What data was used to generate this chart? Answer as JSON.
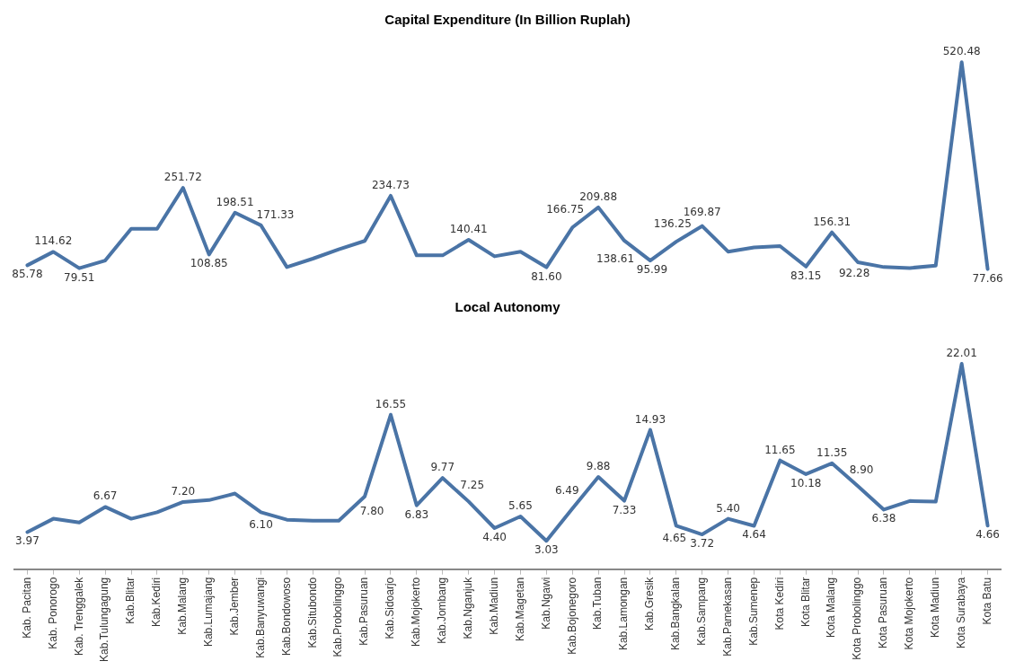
{
  "chart_data": [
    {
      "type": "line",
      "title": "Capital Expenditure (In Billion Ruplah)",
      "categories": [
        null,
        null,
        null,
        null,
        null,
        null,
        null,
        null,
        null,
        null,
        null,
        null,
        null,
        null,
        null,
        null,
        null,
        null,
        null,
        null,
        null,
        null,
        null,
        null,
        null,
        null,
        null,
        null,
        null,
        null,
        null,
        null,
        null,
        null,
        null,
        null,
        null,
        null
      ],
      "series": [
        {
          "color": "#4a74a6",
          "values": [
            85.78,
            114.62,
            79.51,
            96,
            164,
            164,
            251.72,
            108.85,
            198.51,
            171.33,
            82,
            100,
            120,
            138,
            234.73,
            107,
            107,
            140.41,
            105,
            115,
            81.6,
            166.75,
            209.88,
            138.61,
            95.99,
            136.25,
            169.87,
            115,
            124,
            127,
            83.15,
            156.31,
            92.28,
            82,
            80,
            85,
            520.48,
            77.66
          ],
          "value_labels": [
            "85.78",
            "114.62",
            "79.51",
            null,
            null,
            null,
            "251.72",
            "108.85",
            "198.51",
            "171.33",
            null,
            null,
            null,
            null,
            "234.73",
            null,
            null,
            "140.41",
            null,
            null,
            "81.60",
            "166.75",
            "209.88",
            "138.61",
            "95.99",
            "136.25",
            "169.87",
            null,
            null,
            null,
            "83.15",
            "156.31",
            "92.28",
            null,
            null,
            null,
            "520.48",
            "77.66"
          ]
        }
      ],
      "tick_labels": false,
      "grid": false
    },
    {
      "type": "line",
      "title": "Local Autonomy",
      "categories": [
        "Kab. Pacitan",
        "Kab. Ponorogo",
        "Kab. Trenggalek",
        "Kab.Tulungagung",
        "Kab.Blitar",
        "Kab.Kediri",
        "Kab.Malang",
        "Kab.Lumajang",
        "Kab.Jember",
        "Kab.Banyuwangi",
        "Kab.Bondowoso",
        "Kab.Situbondo",
        "Kab.Probolinggo",
        "Kab.Pasuruan",
        "Kab.Sidoarjo",
        "Kab.Mojokerto",
        "Kab.Jombang",
        "Kab.Nganjuk",
        "Kab.Madiun",
        "Kab.Magetan",
        "Kab.Ngawi",
        "Kab.Bojonegoro",
        "Kab.Tuban",
        "Kab.Lamongan",
        "Kab.Gresik",
        "Kab.Bangkalan",
        "Kab.Sampang",
        "Kab.Pamekasan",
        "Kab.Sumenep",
        "Kota Kediri",
        "Kota Blitar",
        "Kota Malang",
        "Kota Probolinggo",
        "Kota Pasuruan",
        "Kota Mojokerto",
        "Kota Madiun",
        "Kota Surabaya",
        "Kota Batu"
      ],
      "series": [
        {
          "color": "#4a74a6",
          "values": [
            3.97,
            5.4,
            5.0,
            6.67,
            5.4,
            6.1,
            7.2,
            7.4,
            8.1,
            6.1,
            5.3,
            5.2,
            5.2,
            7.8,
            16.55,
            6.83,
            9.77,
            7.25,
            4.4,
            5.65,
            3.03,
            6.49,
            9.88,
            7.33,
            14.93,
            4.65,
            3.72,
            5.4,
            4.64,
            11.65,
            10.18,
            11.35,
            8.9,
            6.38,
            7.3,
            7.23,
            22.01,
            4.66
          ],
          "value_labels": [
            "3.97",
            null,
            null,
            "6.67",
            null,
            null,
            "7.20",
            null,
            null,
            "6.10",
            null,
            null,
            null,
            "7.80",
            "16.55",
            "6.83",
            "9.77",
            "7.25",
            "4.40",
            "5.65",
            "3.03",
            "6.49",
            "9.88",
            "7.33",
            "14.93",
            "4.65",
            "3.72",
            "5.40",
            "4.64",
            "11.65",
            "10.18",
            "11.35",
            "8.90",
            "6.38",
            null,
            null,
            "22.01",
            "4.66"
          ]
        }
      ],
      "tick_labels": "x",
      "grid": false
    }
  ]
}
